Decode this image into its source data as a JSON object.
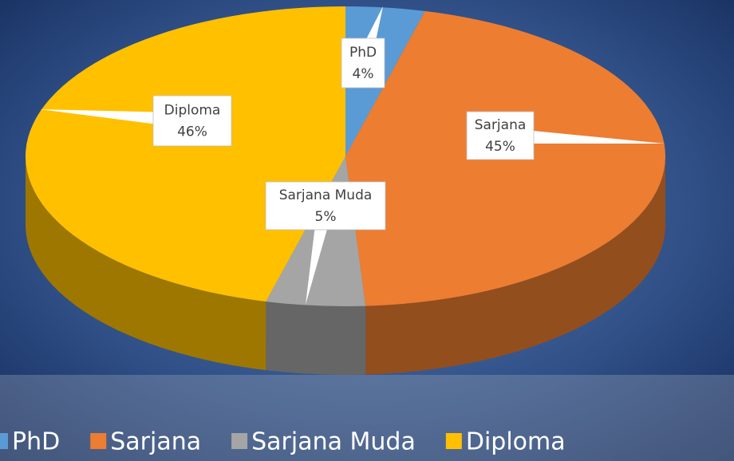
{
  "chart_data": {
    "type": "pie3d",
    "categories": [
      "PhD",
      "Sarjana",
      "Sarjana Muda",
      "Diploma"
    ],
    "values": [
      4,
      45,
      5,
      46
    ],
    "value_labels": [
      "4%",
      "45%",
      "5%",
      "46%"
    ],
    "colors": [
      "#5b9bd5",
      "#ed7d31",
      "#a5a5a5",
      "#ffc000"
    ],
    "legend": "bottom"
  }
}
